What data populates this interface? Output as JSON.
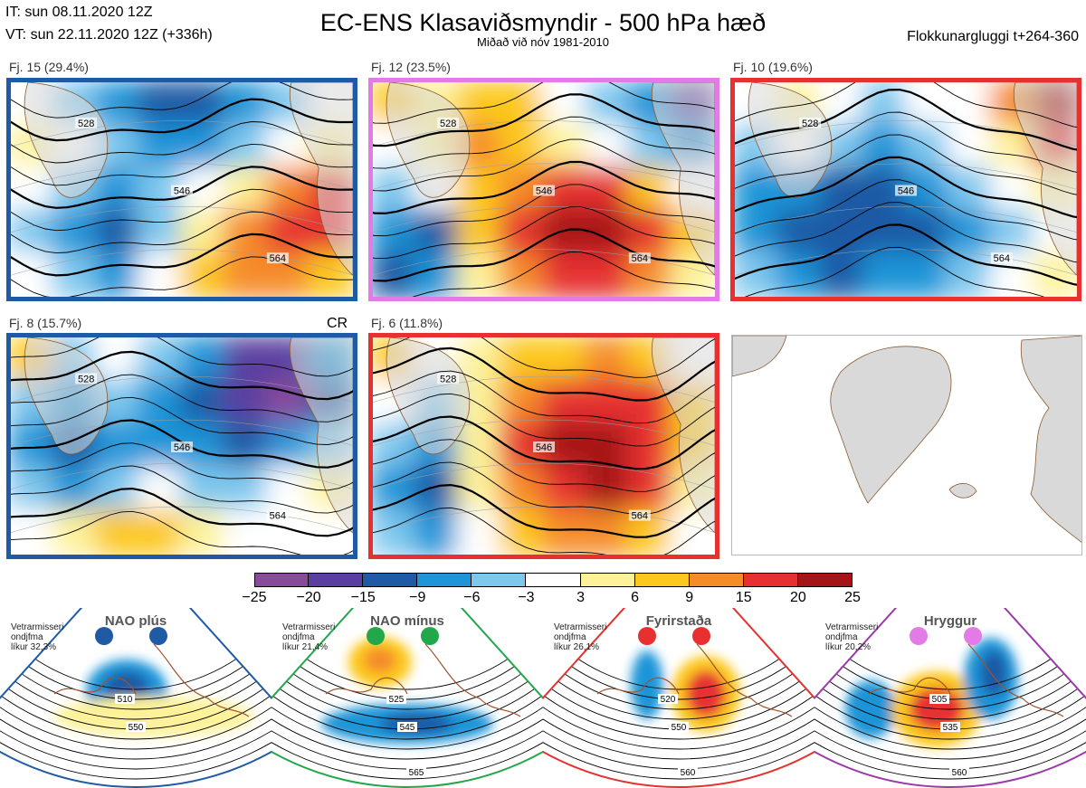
{
  "header": {
    "initial_time": "IT: sun 08.11.2020 12Z",
    "valid_time": "VT: sun 22.11.2020 12Z  (+336h)",
    "title": "EC-ENS Klasaviðsmyndir - 500 hPa hæð",
    "subtitle": "Miðað við nóv 1981-2010",
    "window": "Flokkunargluggi t+264-360"
  },
  "colors": {
    "palette": [
      "#8a4a9c",
      "#5a3fa0",
      "#1f5aa5",
      "#1f95d8",
      "#7ec8ee",
      "#ffffff",
      "#fdf29a",
      "#fcc81e",
      "#f58c2a",
      "#e63130",
      "#a51515"
    ],
    "nao_plus": "#1f5aa5",
    "nao_minus": "#22a84a",
    "blocking": "#e63130",
    "ridge": "#e27be6",
    "land": "#d9d9d9",
    "coast": "#8a5a2e"
  },
  "chart_data": [
    {
      "type": "heatmap",
      "title": "Fj. 15 (29.4%)",
      "regime": "NAO plús",
      "frame_color": "#1f5aa5",
      "cells": [
        [
          "#ffffff",
          "#7ec8ee",
          "#1f95d8",
          "#1f5aa5",
          "#1f5aa5",
          "#1f95d8",
          "#7ec8ee",
          "#ffffff"
        ],
        [
          "#fdf29a",
          "#ffffff",
          "#7ec8ee",
          "#1f95d8",
          "#1f95d8",
          "#7ec8ee",
          "#ffffff",
          "#fdf29a"
        ],
        [
          "#ffffff",
          "#7ec8ee",
          "#1f95d8",
          "#7ec8ee",
          "#ffffff",
          "#fdf29a",
          "#f58c2a",
          "#e63130"
        ],
        [
          "#7ec8ee",
          "#1f95d8",
          "#1f5aa5",
          "#7ec8ee",
          "#fdf29a",
          "#f58c2a",
          "#e63130",
          "#e63130"
        ],
        [
          "#ffffff",
          "#7ec8ee",
          "#1f95d8",
          "#ffffff",
          "#fcc81e",
          "#f58c2a",
          "#f58c2a",
          "#fcc81e"
        ]
      ],
      "contours": [
        "528",
        "546",
        "564"
      ]
    },
    {
      "type": "heatmap",
      "title": "Fj. 12 (23.5%)",
      "regime": "Hryggur",
      "frame_color": "#e27be6",
      "cells": [
        [
          "#fcc81e",
          "#fdf29a",
          "#fcc81e",
          "#fcc81e",
          "#ffffff",
          "#7ec8ee",
          "#1f95d8",
          "#5a3fa0"
        ],
        [
          "#ffffff",
          "#fdf29a",
          "#f58c2a",
          "#fcc81e",
          "#fdf29a",
          "#ffffff",
          "#7ec8ee",
          "#1f95d8"
        ],
        [
          "#7ec8ee",
          "#ffffff",
          "#fcc81e",
          "#f58c2a",
          "#e63130",
          "#e63130",
          "#fcc81e",
          "#ffffff"
        ],
        [
          "#1f95d8",
          "#1f5aa5",
          "#fcc81e",
          "#e63130",
          "#a51515",
          "#a51515",
          "#e63130",
          "#fcc81e"
        ],
        [
          "#1f5aa5",
          "#1f95d8",
          "#fdf29a",
          "#f58c2a",
          "#e63130",
          "#e63130",
          "#f58c2a",
          "#fdf29a"
        ]
      ],
      "contours": [
        "528",
        "546",
        "564"
      ]
    },
    {
      "type": "heatmap",
      "title": "Fj. 10 (19.6%)",
      "regime": "Fyrirstaða",
      "frame_color": "#e63130",
      "cells": [
        [
          "#ffffff",
          "#fdf29a",
          "#ffffff",
          "#7ec8ee",
          "#ffffff",
          "#ffffff",
          "#f58c2a",
          "#a51515"
        ],
        [
          "#7ec8ee",
          "#ffffff",
          "#7ec8ee",
          "#1f95d8",
          "#7ec8ee",
          "#ffffff",
          "#fdf29a",
          "#e63130"
        ],
        [
          "#1f95d8",
          "#1f95d8",
          "#1f5aa5",
          "#1f5aa5",
          "#1f95d8",
          "#7ec8ee",
          "#ffffff",
          "#fdf29a"
        ],
        [
          "#1f95d8",
          "#1f5aa5",
          "#1f5aa5",
          "#1f5aa5",
          "#1f5aa5",
          "#1f95d8",
          "#7ec8ee",
          "#ffffff"
        ],
        [
          "#7ec8ee",
          "#1f95d8",
          "#1f5aa5",
          "#1f95d8",
          "#1f95d8",
          "#7ec8ee",
          "#ffffff",
          "#fdf29a"
        ]
      ],
      "contours": [
        "528",
        "546",
        "564"
      ]
    },
    {
      "type": "heatmap",
      "title": "Fj. 8 (15.7%)",
      "regime": "NAO plús",
      "frame_color": "#1f5aa5",
      "corner_note": "CR",
      "cells": [
        [
          "#fcc81e",
          "#7ec8ee",
          "#ffffff",
          "#7ec8ee",
          "#1f95d8",
          "#5a3fa0",
          "#5a3fa0",
          "#1f95d8"
        ],
        [
          "#7ec8ee",
          "#1f95d8",
          "#7ec8ee",
          "#1f95d8",
          "#1f5aa5",
          "#5a3fa0",
          "#8a4a9c",
          "#1f5aa5"
        ],
        [
          "#1f95d8",
          "#1f5aa5",
          "#1f95d8",
          "#1f95d8",
          "#1f95d8",
          "#1f5aa5",
          "#1f95d8",
          "#7ec8ee"
        ],
        [
          "#7ec8ee",
          "#1f95d8",
          "#7ec8ee",
          "#ffffff",
          "#7ec8ee",
          "#7ec8ee",
          "#ffffff",
          "#fdf29a"
        ],
        [
          "#ffffff",
          "#fdf29a",
          "#fcc81e",
          "#fcc81e",
          "#fdf29a",
          "#ffffff",
          "#ffffff",
          "#ffffff"
        ]
      ],
      "contours": [
        "528",
        "546",
        "564"
      ]
    },
    {
      "type": "heatmap",
      "title": "Fj. 6 (11.8%)",
      "regime": "Fyrirstaða",
      "frame_color": "#e63130",
      "cells": [
        [
          "#fcc81e",
          "#ffffff",
          "#fdf29a",
          "#fcc81e",
          "#fcc81e",
          "#f58c2a",
          "#fcc81e",
          "#ffffff"
        ],
        [
          "#ffffff",
          "#7ec8ee",
          "#fdf29a",
          "#f58c2a",
          "#e63130",
          "#e63130",
          "#e63130",
          "#fcc81e"
        ],
        [
          "#7ec8ee",
          "#1f95d8",
          "#fdf29a",
          "#e63130",
          "#a51515",
          "#a51515",
          "#e63130",
          "#fcc81e"
        ],
        [
          "#1f95d8",
          "#1f5aa5",
          "#fdf29a",
          "#f58c2a",
          "#e63130",
          "#a51515",
          "#e63130",
          "#fdf29a"
        ],
        [
          "#7ec8ee",
          "#1f95d8",
          "#ffffff",
          "#fcc81e",
          "#f58c2a",
          "#f58c2a",
          "#fcc81e",
          "#ffffff"
        ]
      ],
      "contours": [
        "528",
        "546",
        "564"
      ]
    }
  ],
  "colorbar": {
    "ticks": [
      "−25",
      "−20",
      "−15",
      "−9",
      "−6",
      "−3",
      "3",
      "6",
      "9",
      "15",
      "20",
      "25"
    ]
  },
  "regimes": [
    {
      "name": "NAO plús",
      "note_line1": "Vetrarmisseri",
      "note_line2": "ondjfma",
      "note_line3": "líkur 32,3%",
      "dot_color": "#1f5aa5",
      "frame_color": "#1f5aa5",
      "contours": [
        "510",
        "550"
      ]
    },
    {
      "name": "NAO mínus",
      "note_line1": "Vetrarmisseri",
      "note_line2": "ondjfma",
      "note_line3": "líkur 21,4%",
      "dot_color": "#22a84a",
      "frame_color": "#22a84a",
      "contours": [
        "525",
        "545",
        "565"
      ]
    },
    {
      "name": "Fyrirstaða",
      "note_line1": "Vetrarmisseri",
      "note_line2": "ondjfma",
      "note_line3": "líkur 26,1%",
      "dot_color": "#e63130",
      "frame_color": "#e63130",
      "contours": [
        "520",
        "550",
        "560"
      ]
    },
    {
      "name": "Hryggur",
      "note_line1": "Vetrarmisseri",
      "note_line2": "ondjfma",
      "note_line3": "líkur 20,2%",
      "dot_color": "#e27be6",
      "frame_color": "#9b3aa8",
      "contours": [
        "505",
        "535",
        "560"
      ]
    }
  ]
}
